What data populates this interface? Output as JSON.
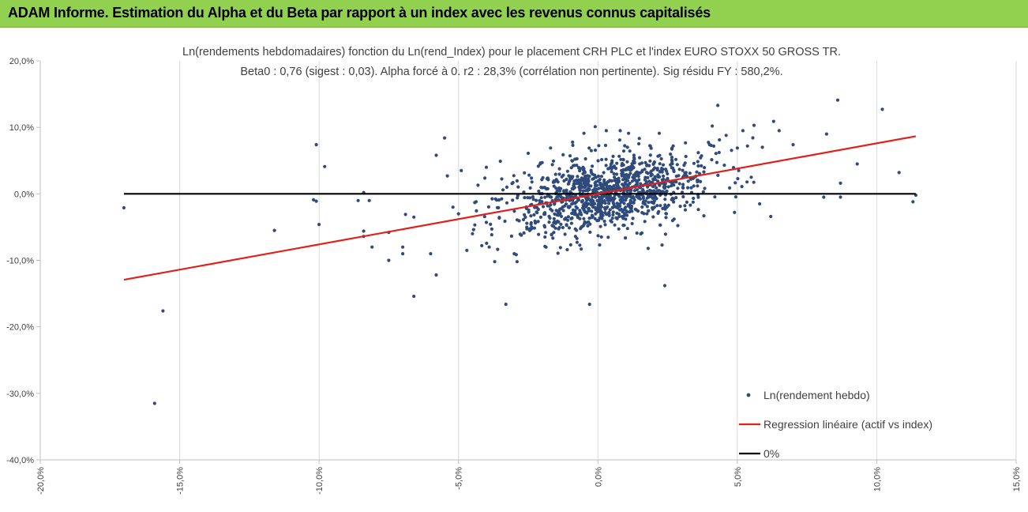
{
  "header": {
    "title": "ADAM Informe. Estimation du Alpha et du Beta par rapport à un index avec les revenus connus capitalisés"
  },
  "colors": {
    "header_bg": "#92d050",
    "points": "#2f4b7c",
    "regression": "#e0201b",
    "zero_line": "#000000",
    "grid": "#d9d9d9"
  },
  "chart_data": {
    "type": "scatter",
    "title": "Ln(rendements hebdomadaires) fonction du Ln(rend_Index) pour le placement CRH PLC et l'index EURO STOXX 50 GROSS TR.",
    "subtitle": "Beta0 : 0,76  (sigest : 0,03).  Alpha forcé à 0. r2 : 28,3% (corrélation non pertinente). Sig résidu FY : 580,2%.",
    "xlabel": "",
    "ylabel": "",
    "xlim": [
      -0.2,
      0.15
    ],
    "ylim": [
      -0.4,
      0.2
    ],
    "x_ticks": [
      "-20,0%",
      "-15,0%",
      "-10,0%",
      "-5,0%",
      "0,0%",
      "5,0%",
      "10,0%",
      "15,0%"
    ],
    "y_ticks": [
      "20,0%",
      "10,0%",
      "0,0%",
      "-10,0%",
      "-20,0%",
      "-30,0%",
      "-40,0%"
    ],
    "grid": "vertical",
    "legend_position": "bottom-right",
    "legend": [
      "Ln(rendement hebdo)",
      "Regression linéaire (actif vs index)",
      "0%"
    ],
    "regression": {
      "beta": 0.76,
      "x_range": [
        -0.17,
        0.114
      ]
    },
    "zero_line": {
      "x_range": [
        -0.17,
        0.114
      ]
    },
    "cloud": {
      "count": 1150,
      "x_center": 0.003,
      "x_sd": 0.018,
      "beta": 0.76,
      "residual_sd": 0.028
    },
    "points": [
      [
        -0.17,
        -0.021
      ],
      [
        -0.159,
        -0.315
      ],
      [
        -0.156,
        -0.176
      ],
      [
        -0.116,
        -0.055
      ],
      [
        -0.102,
        -0.009
      ],
      [
        -0.101,
        -0.011
      ],
      [
        -0.101,
        0.074
      ],
      [
        -0.1,
        -0.046
      ],
      [
        -0.098,
        0.041
      ],
      [
        -0.086,
        -0.01
      ],
      [
        -0.084,
        0.002
      ],
      [
        -0.084,
        -0.056
      ],
      [
        -0.084,
        -0.064
      ],
      [
        -0.082,
        -0.01
      ],
      [
        -0.081,
        -0.08
      ],
      [
        -0.075,
        -0.058
      ],
      [
        -0.075,
        -0.1
      ],
      [
        -0.07,
        -0.08
      ],
      [
        -0.07,
        -0.09
      ],
      [
        -0.069,
        -0.031
      ],
      [
        -0.066,
        -0.035
      ],
      [
        -0.066,
        -0.154
      ],
      [
        -0.06,
        -0.09
      ],
      [
        -0.058,
        -0.122
      ],
      [
        -0.058,
        0.058
      ],
      [
        -0.055,
        0.084
      ],
      [
        -0.054,
        0.027
      ],
      [
        -0.052,
        -0.02
      ],
      [
        -0.05,
        -0.03
      ],
      [
        -0.049,
        0.035
      ],
      [
        -0.047,
        -0.085
      ],
      [
        -0.045,
        -0.06
      ],
      [
        -0.043,
        0.013
      ],
      [
        -0.04,
        0.04
      ],
      [
        -0.039,
        -0.08
      ],
      [
        -0.037,
        -0.102
      ],
      [
        -0.033,
        -0.166
      ],
      [
        -0.03,
        -0.09
      ],
      [
        -0.02,
        0.047
      ],
      [
        -0.017,
        0.069
      ],
      [
        -0.011,
        -0.084
      ],
      [
        -0.009,
        0.073
      ],
      [
        -0.006,
        -0.083
      ],
      [
        -0.005,
        0.091
      ],
      [
        -0.003,
        -0.166
      ],
      [
        -0.001,
        0.101
      ],
      [
        0.001,
        -0.01
      ],
      [
        0.003,
        0.095
      ],
      [
        0.008,
        0.095
      ],
      [
        0.011,
        0.091
      ],
      [
        0.018,
        -0.082
      ],
      [
        0.022,
        0.091
      ],
      [
        0.023,
        -0.077
      ],
      [
        0.024,
        -0.138
      ],
      [
        0.033,
        0.031
      ],
      [
        0.038,
        -0.033
      ],
      [
        0.041,
        0.102
      ],
      [
        0.043,
        0.133
      ],
      [
        0.049,
        -0.028
      ],
      [
        0.052,
        0.095
      ],
      [
        0.055,
        0.025
      ],
      [
        0.056,
        0.103
      ],
      [
        0.058,
        -0.015
      ],
      [
        0.062,
        -0.034
      ],
      [
        0.063,
        0.109
      ],
      [
        0.065,
        0.095
      ],
      [
        0.07,
        0.074
      ],
      [
        0.082,
        0.09
      ],
      [
        0.086,
        0.141
      ],
      [
        0.087,
        0.016
      ],
      [
        0.093,
        0.045
      ],
      [
        0.102,
        0.127
      ],
      [
        0.108,
        0.032
      ],
      [
        0.113,
        -0.012
      ],
      [
        0.114,
        -0.002
      ],
      [
        0.087,
        -0.005
      ],
      [
        0.081,
        -0.005
      ],
      [
        0.059,
        0.07
      ],
      [
        0.05,
        0.069
      ],
      [
        0.046,
        0.088
      ],
      [
        0.036,
        0.062
      ],
      [
        0.027,
        0.072
      ],
      [
        -0.025,
        0.061
      ],
      [
        -0.035,
        0.049
      ],
      [
        -0.019,
        -0.079
      ],
      [
        -0.029,
        -0.102
      ],
      [
        0.014,
        -0.059
      ]
    ]
  }
}
